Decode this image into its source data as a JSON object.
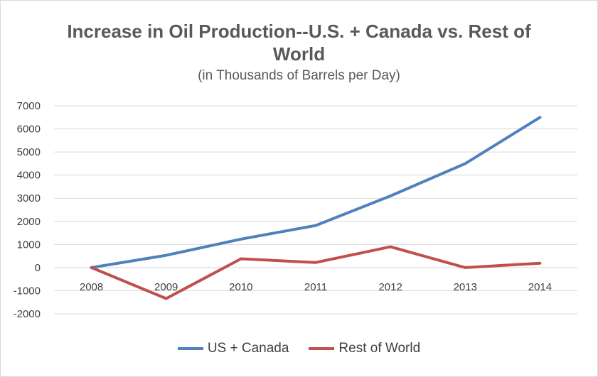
{
  "chart_data": {
    "type": "line",
    "title_line1": "Increase in Oil Production--U.S. + Canada vs. Rest of",
    "title_line2": "World",
    "subtitle": "(in Thousands of Barrels per Day)",
    "categories": [
      "2008",
      "2009",
      "2010",
      "2011",
      "2012",
      "2013",
      "2014"
    ],
    "ylim": [
      -2000,
      7000
    ],
    "yticks": [
      7000,
      6000,
      5000,
      4000,
      3000,
      2000,
      1000,
      0,
      -1000,
      -2000
    ],
    "grid": true,
    "legend_position": "bottom",
    "series": [
      {
        "name": "US + Canada",
        "color": "#4f81bd",
        "values": [
          0,
          530,
          1230,
          1820,
          3100,
          4500,
          6500
        ]
      },
      {
        "name": "Rest of World",
        "color": "#c0504d",
        "values": [
          0,
          -1340,
          380,
          220,
          900,
          0,
          190
        ]
      }
    ]
  }
}
